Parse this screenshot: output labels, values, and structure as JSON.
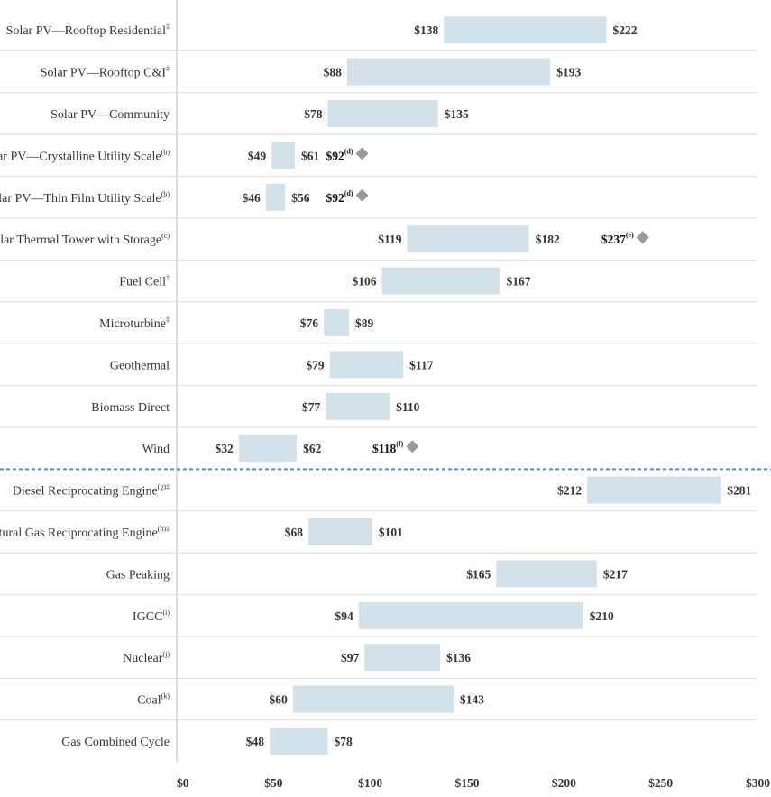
{
  "chart_data": {
    "type": "bar",
    "orientation": "horizontal",
    "range_bars": true,
    "xlim": [
      0,
      300
    ],
    "x_ticks": [
      0,
      50,
      100,
      150,
      200,
      250,
      300
    ],
    "x_tick_labels": [
      "$0",
      "$50",
      "$100",
      "$150",
      "$200",
      "$250",
      "$300"
    ],
    "grid": "horizontal row separators",
    "colors": {
      "bar": "#d3e1ea",
      "separator": "#dcdcdc",
      "divider": "#4a90b8",
      "marker": "#999999"
    },
    "rows": [
      {
        "category": "Solar PV—Rooftop Residential",
        "note": "‡",
        "low": 138,
        "high": 222,
        "low_label": "$138",
        "high_label": "$222"
      },
      {
        "category": "Solar PV—Rooftop C&I",
        "note": "‡",
        "low": 88,
        "high": 193,
        "low_label": "$88",
        "high_label": "$193"
      },
      {
        "category": "Solar PV—Community",
        "note": "",
        "low": 78,
        "high": 135,
        "low_label": "$78",
        "high_label": "$135"
      },
      {
        "category": "Solar PV—Crystalline Utility Scale",
        "note": "(b)",
        "low": 49,
        "high": 61,
        "low_label": "$49",
        "high_label": "$61",
        "marker": 92,
        "marker_label": "$92",
        "marker_note": "(d)"
      },
      {
        "category": "Solar PV—Thin Film Utility Scale",
        "note": "(b)",
        "low": 46,
        "high": 56,
        "low_label": "$46",
        "high_label": "$56",
        "marker": 92,
        "marker_label": "$92",
        "marker_note": "(d)"
      },
      {
        "category": "Solar Thermal Tower with Storage",
        "note": "(c)",
        "low": 119,
        "high": 182,
        "low_label": "$119",
        "high_label": "$182",
        "marker": 237,
        "marker_label": "$237",
        "marker_note": "(e)"
      },
      {
        "category": "Fuel Cell",
        "note": "‡",
        "low": 106,
        "high": 167,
        "low_label": "$106",
        "high_label": "$167"
      },
      {
        "category": "Microturbine",
        "note": "‡",
        "low": 76,
        "high": 89,
        "low_label": "$76",
        "high_label": "$89"
      },
      {
        "category": "Geothermal",
        "note": "",
        "low": 79,
        "high": 117,
        "low_label": "$79",
        "high_label": "$117"
      },
      {
        "category": "Biomass Direct",
        "note": "",
        "low": 77,
        "high": 110,
        "low_label": "$77",
        "high_label": "$110"
      },
      {
        "category": "Wind",
        "note": "",
        "low": 32,
        "high": 62,
        "low_label": "$32",
        "high_label": "$62",
        "marker": 118,
        "marker_label": "$118",
        "marker_note": "(f)"
      },
      {
        "category": "Diesel Reciprocating Engine",
        "note": "(g)‡",
        "low": 212,
        "high": 281,
        "low_label": "$212",
        "high_label": "$281"
      },
      {
        "category": "Natural Gas Reciprocating Engine",
        "note": "(h)‡",
        "low": 68,
        "high": 101,
        "low_label": "$68",
        "high_label": "$101"
      },
      {
        "category": "Gas Peaking",
        "note": "",
        "low": 165,
        "high": 217,
        "low_label": "$165",
        "high_label": "$217"
      },
      {
        "category": "IGCC",
        "note": "(i)",
        "low": 94,
        "high": 210,
        "low_label": "$94",
        "high_label": "$210"
      },
      {
        "category": "Nuclear",
        "note": "(j)",
        "low": 97,
        "high": 136,
        "low_label": "$97",
        "high_label": "$136"
      },
      {
        "category": "Coal",
        "note": "(k)",
        "low": 60,
        "high": 143,
        "low_label": "$60",
        "high_label": "$143"
      },
      {
        "category": "Gas Combined Cycle",
        "note": "",
        "low": 48,
        "high": 78,
        "low_label": "$48",
        "high_label": "$78"
      }
    ],
    "divider_after_row": 10
  }
}
